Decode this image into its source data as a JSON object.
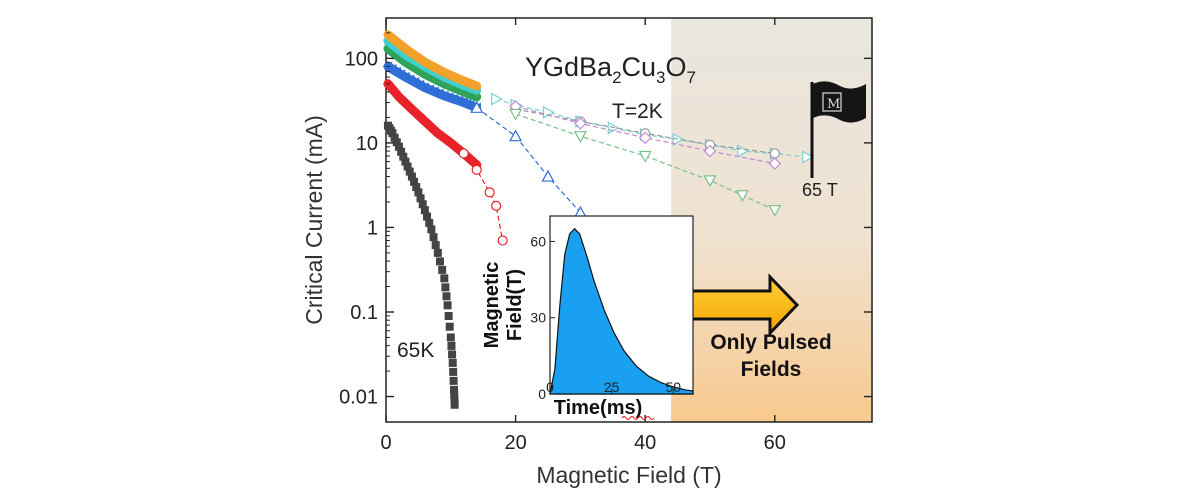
{
  "chart_data": [
    {
      "type": "scatter",
      "title": "YGdBa",
      "title_sub1": "2",
      "title_mid1": "Cu",
      "title_sub2": "3",
      "title_mid2": "O",
      "title_sub3": "7",
      "xlabel": "Magnetic Field (T)",
      "ylabel": "Critical Current (mA)",
      "xlim": [
        0,
        75
      ],
      "ylim": [
        0.005,
        300
      ],
      "yscale": "log",
      "xticks": [
        "0",
        "20",
        "40",
        "60"
      ],
      "yticks": [
        "0.01",
        "0.1",
        "1",
        "10",
        "100"
      ],
      "annotations": {
        "temp_low": "T=2K",
        "temp_high": "65K",
        "max_field": "65 T",
        "region": "Only Pulsed",
        "region2": "Fields"
      },
      "region_start": 44,
      "colors": {
        "65K": "#444444",
        "red": "#e8232a",
        "blue": "#2f6fd6",
        "green": "#2fa35a",
        "cyan": "#3fd0d0",
        "orange": "#f2a22a",
        "pulsed_lowT": "#5a8fd0"
      },
      "series": [
        {
          "name": "65K",
          "color": "#444444",
          "marker": "square",
          "points": [
            [
              0.3,
              16
            ],
            [
              1,
              13
            ],
            [
              2,
              9
            ],
            [
              3,
              6
            ],
            [
              4,
              4
            ],
            [
              5,
              2.6
            ],
            [
              6,
              1.6
            ],
            [
              7,
              0.95
            ],
            [
              8,
              0.5
            ],
            [
              9,
              0.25
            ],
            [
              9.5,
              0.12
            ],
            [
              10,
              0.05
            ],
            [
              10.3,
              0.025
            ],
            [
              10.5,
              0.012
            ],
            [
              10.6,
              0.008
            ]
          ]
        },
        {
          "color": "#e8232a",
          "marker": "circle",
          "points": [
            [
              0.3,
              50
            ],
            [
              2,
              35
            ],
            [
              4,
              25
            ],
            [
              6,
              18
            ],
            [
              8,
              13
            ],
            [
              10,
              10
            ],
            [
              12,
              7.5
            ],
            [
              14,
              5.5
            ]
          ]
        },
        {
          "color": "#e8232a",
          "marker": "open-circle",
          "dashed": true,
          "points": [
            [
              12,
              7.5
            ],
            [
              14,
              4.8
            ],
            [
              16,
              2.6
            ],
            [
              17,
              1.8
            ],
            [
              18,
              0.7
            ]
          ]
        },
        {
          "color": "#2f6fd6",
          "marker": "triangle-left",
          "points": [
            [
              0.3,
              80
            ],
            [
              3,
              60
            ],
            [
              6,
              45
            ],
            [
              9,
              36
            ],
            [
              12,
              30
            ],
            [
              14,
              26
            ]
          ]
        },
        {
          "color": "#2f6fd6",
          "marker": "open-triangle-up",
          "dashed": true,
          "points": [
            [
              14,
              26
            ],
            [
              20,
              12
            ],
            [
              25,
              4
            ],
            [
              30,
              1.5
            ]
          ]
        },
        {
          "color": "#2fa35a",
          "marker": "filled",
          "points": [
            [
              0.3,
              130
            ],
            [
              3,
              90
            ],
            [
              6,
              65
            ],
            [
              9,
              50
            ],
            [
              12,
              40
            ],
            [
              14,
              35
            ]
          ]
        },
        {
          "color": "#3fd0d0",
          "marker": "filled",
          "points": [
            [
              0.3,
              160
            ],
            [
              3,
              110
            ],
            [
              6,
              80
            ],
            [
              9,
              60
            ],
            [
              12,
              48
            ],
            [
              14,
              42
            ]
          ]
        },
        {
          "color": "#f2a22a",
          "marker": "filled",
          "points": [
            [
              0.3,
              190
            ],
            [
              3,
              130
            ],
            [
              6,
              90
            ],
            [
              9,
              68
            ],
            [
              12,
              54
            ],
            [
              14,
              47
            ]
          ]
        },
        {
          "color": "#7ad0d0",
          "marker": "open-triangle-right",
          "dashed": true,
          "points": [
            [
              17,
              33
            ],
            [
              20,
              28
            ],
            [
              25,
              23
            ],
            [
              30,
              18
            ],
            [
              35,
              15
            ],
            [
              40,
              12.5
            ],
            [
              45,
              11
            ],
            [
              50,
              9.5
            ],
            [
              55,
              8
            ],
            [
              60,
              7.5
            ],
            [
              65,
              6.8
            ]
          ]
        },
        {
          "color": "#9a9a9a",
          "marker": "open-circle",
          "dashed": true,
          "points": [
            [
              20,
              25
            ],
            [
              30,
              18
            ],
            [
              40,
              13
            ],
            [
              50,
              9.5
            ],
            [
              60,
              7.5
            ]
          ]
        },
        {
          "color": "#c08ad6",
          "marker": "open-diamond",
          "dashed": true,
          "points": [
            [
              20,
              27
            ],
            [
              30,
              17
            ],
            [
              40,
              11.5
            ],
            [
              50,
              8
            ],
            [
              60,
              5.7
            ]
          ]
        },
        {
          "color": "#7ac08a",
          "marker": "open-triangle-down",
          "dashed": true,
          "points": [
            [
              20,
              22
            ],
            [
              30,
              12
            ],
            [
              40,
              7
            ],
            [
              50,
              3.6
            ],
            [
              55,
              2.4
            ],
            [
              60,
              1.6
            ]
          ]
        }
      ]
    },
    {
      "type": "area",
      "xlabel": "Time(ms)",
      "ylabel": "Magnetic",
      "ylabel2": "Field(T)",
      "xlim": [
        0,
        58
      ],
      "ylim": [
        0,
        70
      ],
      "xticks": [
        "0",
        "25",
        "50"
      ],
      "yticks": [
        "0",
        "30",
        "60"
      ],
      "color": "#1aa0f0",
      "points": [
        [
          0,
          0
        ],
        [
          2,
          10
        ],
        [
          4,
          35
        ],
        [
          6,
          55
        ],
        [
          8,
          63
        ],
        [
          10,
          65
        ],
        [
          12,
          63
        ],
        [
          15,
          54
        ],
        [
          18,
          44
        ],
        [
          22,
          33
        ],
        [
          26,
          24
        ],
        [
          30,
          17
        ],
        [
          35,
          11
        ],
        [
          40,
          7
        ],
        [
          45,
          4.5
        ],
        [
          50,
          2.8
        ],
        [
          55,
          1.6
        ],
        [
          58,
          1.2
        ]
      ]
    }
  ]
}
